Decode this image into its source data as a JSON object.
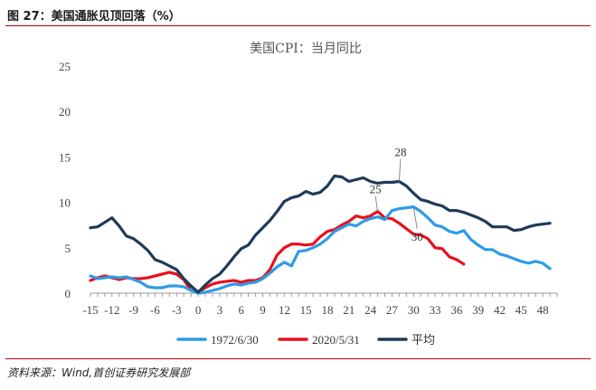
{
  "figure": {
    "caption": "图 27：美国通胀见顶回落（%）",
    "source": "资料来源：Wind,首创证券研究发展部"
  },
  "chart_data": {
    "type": "line",
    "title": "美国CPI：当月同比",
    "xlabel": "",
    "ylabel": "",
    "xlim": [
      -15,
      50
    ],
    "ylim": [
      0,
      25
    ],
    "x_ticks": [
      -15,
      -12,
      -9,
      -6,
      -3,
      0,
      3,
      6,
      9,
      12,
      15,
      18,
      21,
      24,
      27,
      30,
      33,
      36,
      39,
      42,
      45,
      48
    ],
    "y_ticks": [
      0,
      5,
      10,
      15,
      20,
      25
    ],
    "grid": false,
    "legend_position": "bottom",
    "series": [
      {
        "name": "1972/6/30",
        "color": "#2e9be6",
        "points": [
          [
            -15,
            1.9
          ],
          [
            -14,
            1.6
          ],
          [
            -13,
            1.7
          ],
          [
            -12,
            1.8
          ],
          [
            -11,
            1.7
          ],
          [
            -10,
            1.8
          ],
          [
            -9,
            1.5
          ],
          [
            -8,
            1.2
          ],
          [
            -7,
            0.7
          ],
          [
            -6,
            0.6
          ],
          [
            -5,
            0.6
          ],
          [
            -4,
            0.8
          ],
          [
            -3,
            0.8
          ],
          [
            -2,
            0.7
          ],
          [
            -1,
            0.3
          ],
          [
            0,
            0
          ],
          [
            1,
            0.1
          ],
          [
            2,
            0.3
          ],
          [
            3,
            0.5
          ],
          [
            4,
            0.8
          ],
          [
            5,
            1.0
          ],
          [
            6,
            0.9
          ],
          [
            7,
            1.1
          ],
          [
            8,
            1.2
          ],
          [
            9,
            1.6
          ],
          [
            10,
            2.2
          ],
          [
            11,
            2.9
          ],
          [
            12,
            3.4
          ],
          [
            13,
            3.0
          ],
          [
            14,
            4.6
          ],
          [
            15,
            4.7
          ],
          [
            16,
            5.0
          ],
          [
            17,
            5.4
          ],
          [
            18,
            6.0
          ],
          [
            19,
            6.8
          ],
          [
            20,
            7.2
          ],
          [
            21,
            7.6
          ],
          [
            22,
            7.4
          ],
          [
            23,
            7.9
          ],
          [
            24,
            8.2
          ],
          [
            25,
            8.4
          ],
          [
            26,
            8.1
          ],
          [
            27,
            9.1
          ],
          [
            28,
            9.3
          ],
          [
            29,
            9.4
          ],
          [
            30,
            9.5
          ],
          [
            31,
            9.0
          ],
          [
            32,
            8.3
          ],
          [
            33,
            7.5
          ],
          [
            34,
            7.3
          ],
          [
            35,
            6.8
          ],
          [
            36,
            6.6
          ],
          [
            37,
            6.9
          ],
          [
            38,
            5.9
          ],
          [
            39,
            5.3
          ],
          [
            40,
            4.8
          ],
          [
            41,
            4.8
          ],
          [
            42,
            4.3
          ],
          [
            43,
            4.1
          ],
          [
            44,
            3.8
          ],
          [
            45,
            3.5
          ],
          [
            46,
            3.3
          ],
          [
            47,
            3.5
          ],
          [
            48,
            3.3
          ],
          [
            49,
            2.7
          ]
        ]
      },
      {
        "name": "2020/5/31",
        "color": "#e8101e",
        "points": [
          [
            -15,
            1.4
          ],
          [
            -14,
            1.7
          ],
          [
            -13,
            1.9
          ],
          [
            -12,
            1.7
          ],
          [
            -11,
            1.5
          ],
          [
            -10,
            1.7
          ],
          [
            -9,
            1.6
          ],
          [
            -8,
            1.6
          ],
          [
            -7,
            1.7
          ],
          [
            -6,
            1.9
          ],
          [
            -5,
            2.1
          ],
          [
            -4,
            2.3
          ],
          [
            -3,
            2.1
          ],
          [
            -2,
            1.5
          ],
          [
            -1,
            0.3
          ],
          [
            0,
            0.1
          ],
          [
            1,
            0.6
          ],
          [
            2,
            1.0
          ],
          [
            3,
            1.2
          ],
          [
            4,
            1.3
          ],
          [
            5,
            1.4
          ],
          [
            6,
            1.2
          ],
          [
            7,
            1.4
          ],
          [
            8,
            1.4
          ],
          [
            9,
            1.7
          ],
          [
            10,
            2.6
          ],
          [
            11,
            4.2
          ],
          [
            12,
            5.0
          ],
          [
            13,
            5.4
          ],
          [
            14,
            5.4
          ],
          [
            15,
            5.3
          ],
          [
            16,
            5.4
          ],
          [
            17,
            6.2
          ],
          [
            18,
            6.8
          ],
          [
            19,
            7.0
          ],
          [
            20,
            7.5
          ],
          [
            21,
            7.9
          ],
          [
            22,
            8.5
          ],
          [
            23,
            8.3
          ],
          [
            24,
            8.5
          ],
          [
            25,
            9.0
          ],
          [
            26,
            8.3
          ],
          [
            27,
            8.2
          ],
          [
            28,
            7.7
          ],
          [
            29,
            7.1
          ],
          [
            30,
            6.5
          ],
          [
            31,
            6.4
          ],
          [
            32,
            6.0
          ],
          [
            33,
            5.0
          ],
          [
            34,
            4.9
          ],
          [
            35,
            4.0
          ],
          [
            36,
            3.7
          ],
          [
            37,
            3.2
          ]
        ]
      },
      {
        "name": "平均",
        "color": "#1f3a5a",
        "points": [
          [
            -15,
            7.2
          ],
          [
            -14,
            7.3
          ],
          [
            -13,
            7.8
          ],
          [
            -12,
            8.3
          ],
          [
            -11,
            7.4
          ],
          [
            -10,
            6.3
          ],
          [
            -9,
            6.0
          ],
          [
            -8,
            5.4
          ],
          [
            -7,
            4.7
          ],
          [
            -6,
            3.7
          ],
          [
            -5,
            3.4
          ],
          [
            -4,
            3.0
          ],
          [
            -3,
            2.6
          ],
          [
            -2,
            1.6
          ],
          [
            -1,
            0.8
          ],
          [
            0,
            0.1
          ],
          [
            1,
            0.9
          ],
          [
            2,
            1.6
          ],
          [
            3,
            2.1
          ],
          [
            4,
            3.0
          ],
          [
            5,
            4.0
          ],
          [
            6,
            4.9
          ],
          [
            7,
            5.3
          ],
          [
            8,
            6.4
          ],
          [
            9,
            7.2
          ],
          [
            10,
            8.0
          ],
          [
            11,
            9.0
          ],
          [
            12,
            10.1
          ],
          [
            13,
            10.5
          ],
          [
            14,
            10.7
          ],
          [
            15,
            11.2
          ],
          [
            16,
            10.9
          ],
          [
            17,
            11.1
          ],
          [
            18,
            11.8
          ],
          [
            19,
            12.9
          ],
          [
            20,
            12.8
          ],
          [
            21,
            12.3
          ],
          [
            22,
            12.5
          ],
          [
            23,
            12.7
          ],
          [
            24,
            12.3
          ],
          [
            25,
            12.1
          ],
          [
            26,
            12.2
          ],
          [
            27,
            12.2
          ],
          [
            28,
            12.3
          ],
          [
            29,
            11.8
          ],
          [
            30,
            11.0
          ],
          [
            31,
            10.3
          ],
          [
            32,
            10.1
          ],
          [
            33,
            9.8
          ],
          [
            34,
            9.6
          ],
          [
            35,
            9.1
          ],
          [
            36,
            9.1
          ],
          [
            37,
            8.9
          ],
          [
            38,
            8.6
          ],
          [
            39,
            8.3
          ],
          [
            40,
            7.9
          ],
          [
            41,
            7.3
          ],
          [
            42,
            7.3
          ],
          [
            43,
            7.3
          ],
          [
            44,
            6.9
          ],
          [
            45,
            7.0
          ],
          [
            46,
            7.3
          ],
          [
            47,
            7.5
          ],
          [
            48,
            7.6
          ],
          [
            49,
            7.7
          ]
        ]
      }
    ],
    "annotations": [
      {
        "text": "28",
        "x": 28,
        "y": 12.3,
        "target_series": "平均"
      },
      {
        "text": "25",
        "x": 25,
        "y": 9.0,
        "target_series": "2020/5/31"
      },
      {
        "text": "30",
        "x": 30,
        "y": 9.5,
        "target_series": "1972/6/30"
      }
    ]
  }
}
